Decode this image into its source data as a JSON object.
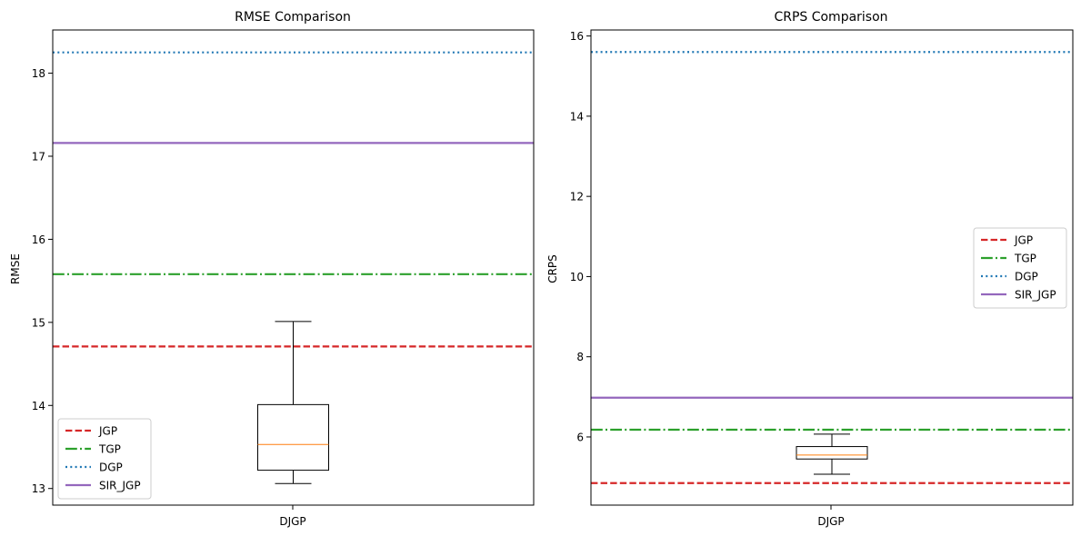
{
  "chart_data": [
    {
      "type": "box",
      "title": "RMSE Comparison",
      "ylabel": "RMSE",
      "xlabel": "",
      "categories": [
        "DJGP"
      ],
      "ylim": [
        12.8,
        18.52
      ],
      "yticks": [
        13,
        14,
        15,
        16,
        17,
        18
      ],
      "box": {
        "name": "DJGP",
        "whisker_low": 13.06,
        "q1": 13.22,
        "median": 13.53,
        "q3": 14.01,
        "whisker_high": 15.01
      },
      "series": [
        {
          "name": "JGP",
          "value": 14.71,
          "style": "dashed",
          "color": "#d62728"
        },
        {
          "name": "TGP",
          "value": 15.58,
          "style": "dashdot",
          "color": "#2ca02c"
        },
        {
          "name": "DGP",
          "value": 18.25,
          "style": "dotted",
          "color": "#1f77b4"
        },
        {
          "name": "SIR_JGP",
          "value": 17.16,
          "style": "solid",
          "color": "#9467bd"
        }
      ],
      "legend": "lower-left",
      "grid": false
    },
    {
      "type": "box",
      "title": "CRPS Comparison",
      "ylabel": "CRPS",
      "xlabel": "",
      "categories": [
        "DJGP"
      ],
      "ylim": [
        4.3,
        16.15
      ],
      "yticks": [
        6,
        8,
        10,
        12,
        14,
        16
      ],
      "box": {
        "name": "DJGP",
        "whisker_low": 5.07,
        "q1": 5.45,
        "median": 5.55,
        "q3": 5.76,
        "whisker_high": 6.07
      },
      "series": [
        {
          "name": "JGP",
          "value": 4.85,
          "style": "dashed",
          "color": "#d62728"
        },
        {
          "name": "TGP",
          "value": 6.18,
          "style": "dashdot",
          "color": "#2ca02c"
        },
        {
          "name": "DGP",
          "value": 15.6,
          "style": "dotted",
          "color": "#1f77b4"
        },
        {
          "name": "SIR_JGP",
          "value": 6.98,
          "style": "solid",
          "color": "#9467bd"
        }
      ],
      "legend": "center-right",
      "grid": false
    }
  ]
}
